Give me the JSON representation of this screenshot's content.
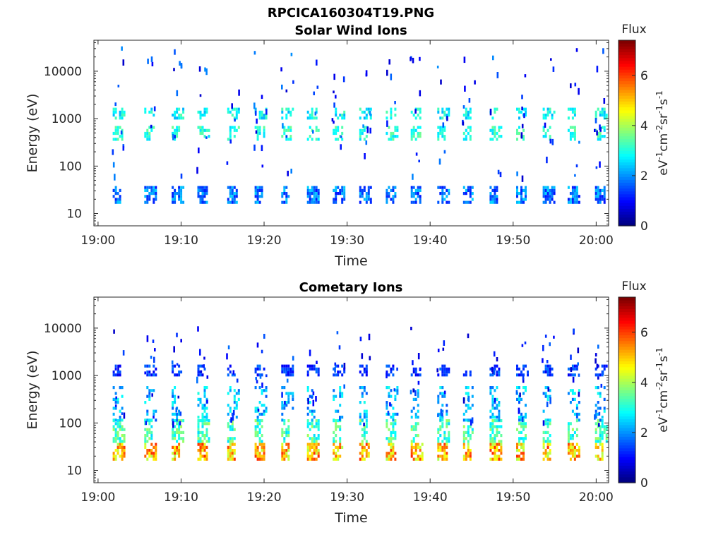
{
  "figure_title": "RPCICA160304T19.PNG",
  "chart_data": [
    {
      "type": "heatmap",
      "title": "Solar Wind Ions",
      "xlabel": "Time",
      "ylabel": "Energy (eV)",
      "x_ticks": [
        "19:00",
        "19:10",
        "19:20",
        "19:30",
        "19:40",
        "19:50",
        "20:00"
      ],
      "x_tick_minutes": [
        0,
        10,
        20,
        30,
        40,
        50,
        60
      ],
      "xlim_minutes": [
        -0.5,
        61.5
      ],
      "y_ticks": [
        "10",
        "100",
        "1000",
        "10000"
      ],
      "y_tick_values": [
        10,
        100,
        1000,
        10000
      ],
      "yscale": "log",
      "ylim": [
        5.5,
        45000
      ],
      "colorbar": {
        "title": "Flux",
        "label": "eV⁻¹cm⁻²sr⁻¹s⁻¹",
        "ticks": [
          "0",
          "2",
          "4",
          "6"
        ],
        "range": [
          0,
          7.4
        ]
      },
      "sweep_start_minutes": [
        2.1,
        5.9,
        9.2,
        12.3,
        15.9,
        19.2,
        22.4,
        25.5,
        28.6,
        31.8,
        35.0,
        38.0,
        41.2,
        44.3,
        47.5,
        50.7,
        53.9,
        56.9,
        60.2
      ],
      "bands": [
        {
          "energy_range_eV": [
            17,
            38
          ],
          "level_range": [
            1.0,
            2.5
          ]
        },
        {
          "energy_range_eV": [
            380,
            700
          ],
          "level_range": [
            2.5,
            3.6
          ]
        },
        {
          "energy_range_eV": [
            1100,
            1700
          ],
          "level_range": [
            2.2,
            3.4
          ]
        }
      ],
      "sparse_points": {
        "energy_range_eV": [
          60,
          35000
        ],
        "level_range": [
          0.5,
          2.0
        ]
      }
    },
    {
      "type": "heatmap",
      "title": "Cometary Ions",
      "xlabel": "Time",
      "ylabel": "Energy (eV)",
      "x_ticks": [
        "19:00",
        "19:10",
        "19:20",
        "19:30",
        "19:40",
        "19:50",
        "20:00"
      ],
      "x_tick_minutes": [
        0,
        10,
        20,
        30,
        40,
        50,
        60
      ],
      "xlim_minutes": [
        -0.5,
        61.5
      ],
      "y_ticks": [
        "10",
        "100",
        "1000",
        "10000"
      ],
      "y_tick_values": [
        10,
        100,
        1000,
        10000
      ],
      "yscale": "log",
      "ylim": [
        5.5,
        45000
      ],
      "colorbar": {
        "title": "Flux",
        "label": "eV⁻¹cm⁻²sr⁻¹s⁻¹",
        "ticks": [
          "0",
          "2",
          "4",
          "6"
        ],
        "range": [
          0,
          7.4
        ]
      },
      "sweep_start_minutes": [
        2.1,
        5.9,
        9.2,
        12.3,
        15.9,
        19.2,
        22.4,
        25.5,
        28.6,
        31.8,
        35.0,
        38.0,
        41.2,
        44.3,
        47.5,
        50.7,
        53.9,
        56.9,
        60.2
      ],
      "bands": [
        {
          "energy_range_eV": [
            17,
            38
          ],
          "level_range": [
            4.0,
            6.2
          ]
        },
        {
          "energy_range_eV": [
            40,
            120
          ],
          "level_range": [
            2.5,
            4.0
          ]
        },
        {
          "energy_range_eV": [
            120,
            600
          ],
          "level_range": [
            1.5,
            3.0
          ]
        },
        {
          "energy_range_eV": [
            1100,
            1700
          ],
          "level_range": [
            0.8,
            1.8
          ]
        }
      ],
      "sparse_points": {
        "energy_range_eV": [
          100,
          11000
        ],
        "level_range": [
          0.5,
          1.8
        ]
      }
    }
  ]
}
